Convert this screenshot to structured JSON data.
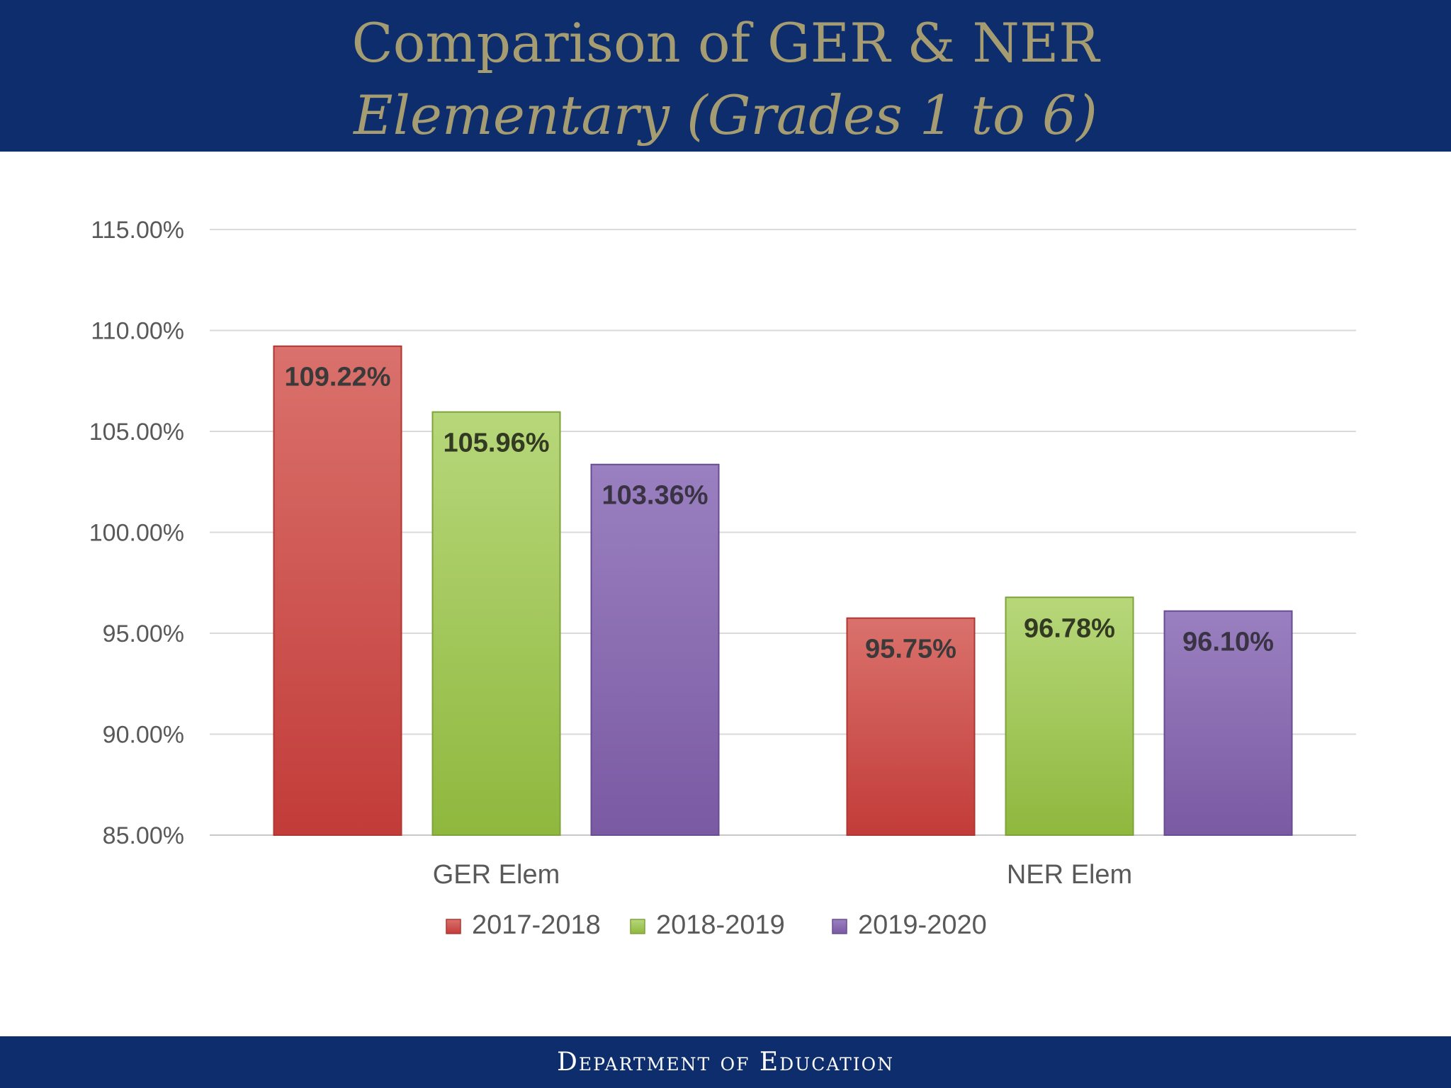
{
  "header": {
    "title_line1": "Comparison of GER & NER",
    "title_line2": "Elementary (Grades 1 to 6)"
  },
  "footer": {
    "text": "Department of Education"
  },
  "chart_data": {
    "type": "bar",
    "title": "Comparison of GER & NER",
    "subtitle": "Elementary (Grades 1 to 6)",
    "xlabel": "",
    "ylabel": "",
    "categories": [
      "GER Elem",
      "NER Elem"
    ],
    "series": [
      {
        "name": "2017-2018",
        "values": [
          109.22,
          95.75
        ],
        "labels": [
          "109.22%",
          "95.75%"
        ],
        "color": "#d0504c"
      },
      {
        "name": "2018-2019",
        "values": [
          105.96,
          96.78
        ],
        "labels": [
          "105.96%",
          "96.78%"
        ],
        "color": "#a4c857"
      },
      {
        "name": "2019-2020",
        "values": [
          103.36,
          96.1
        ],
        "labels": [
          "103.36%",
          "96.10%"
        ],
        "color": "#8a6bb2"
      }
    ],
    "ylim": [
      85,
      115
    ],
    "yticks": [
      85,
      90,
      95,
      100,
      105,
      110,
      115
    ],
    "ytick_labels": [
      "85.00%",
      "90.00%",
      "95.00%",
      "100.00%",
      "105.00%",
      "110.00%",
      "115.00%"
    ],
    "grid": true,
    "legend_position": "bottom"
  }
}
